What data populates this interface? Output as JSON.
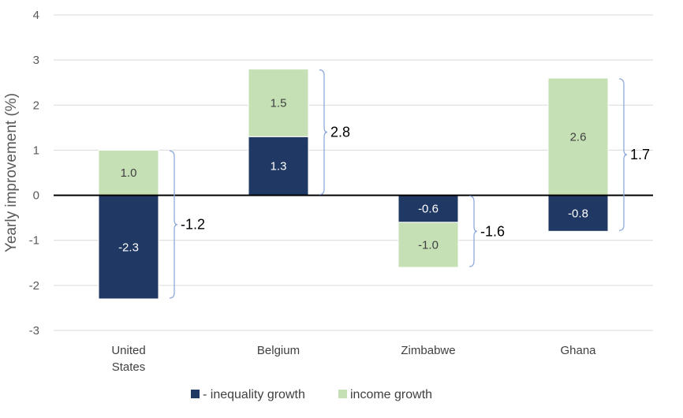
{
  "chart_data": {
    "type": "bar",
    "stacked": true,
    "categories": [
      "United States",
      "Belgium",
      "Zimbabwe",
      "Ghana"
    ],
    "category_lines": [
      [
        "United",
        "States"
      ],
      [
        "Belgium"
      ],
      [
        "Zimbabwe"
      ],
      [
        "Ghana"
      ]
    ],
    "series": [
      {
        "name": "- inequality growth",
        "color": "#1f3864",
        "label_color": "#ffffff",
        "values": [
          -2.3,
          1.3,
          -0.6,
          -0.8
        ]
      },
      {
        "name": "income growth",
        "color": "#c5e0b4",
        "label_color": "#404040",
        "values": [
          1.0,
          1.5,
          -1.0,
          2.6
        ]
      }
    ],
    "data_labels": [
      [
        "-2.3",
        "1.3",
        "-0.6",
        "-0.8"
      ],
      [
        "1.0",
        "1.5",
        "-1.0",
        "2.6"
      ]
    ],
    "totals": [
      -1.2,
      2.8,
      -1.6,
      1.7
    ],
    "total_labels": [
      "-1.2",
      "2.8",
      "-1.6",
      "1.7"
    ],
    "ylabel": "Yearly improvement (%)",
    "xlabel": "",
    "ylim": [
      -3,
      4
    ],
    "yticks": [
      4,
      3,
      2,
      1,
      0,
      -1,
      -2,
      -3
    ],
    "ytick_labels": [
      "4",
      "3",
      "2",
      "1",
      "0",
      "-1",
      "-2",
      "-3"
    ],
    "grid": true,
    "legend_position": "bottom",
    "bracket_color": "#8faadc"
  }
}
